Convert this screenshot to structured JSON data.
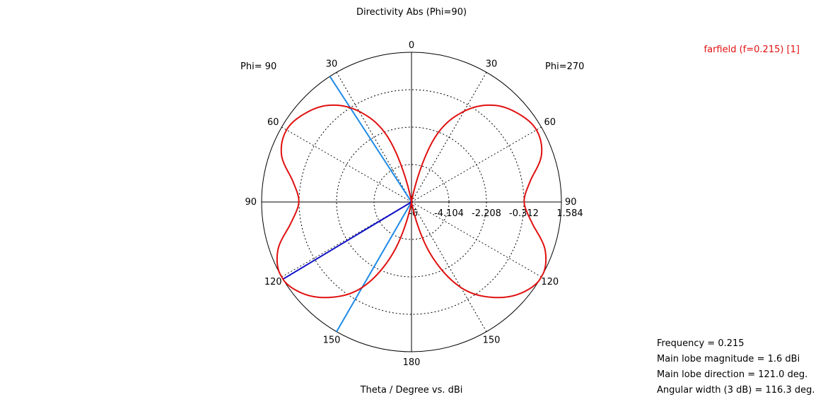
{
  "chart_data": {
    "type": "polar",
    "title": "Directivity Abs (Phi=90)",
    "xlabel": "Theta / Degree vs. dBi",
    "left_half_label": "Phi= 90",
    "right_half_label": "Phi=270",
    "angle_tick_labels": [
      "0",
      "30",
      "60",
      "90",
      "120",
      "150",
      "180",
      "150",
      "120",
      "90",
      "60",
      "30"
    ],
    "radial_tick_labels": [
      "-6",
      "-4.104",
      "-2.208",
      "-0.312",
      "1.584"
    ],
    "radial_range": [
      -6,
      1.584
    ],
    "grid": true,
    "legend": {
      "position": "top-right",
      "entries": [
        "farfield (f=0.215) [1]"
      ]
    },
    "series": [
      {
        "name": "farfield (f=0.215) [1]",
        "color": "#e01010",
        "theta_deg": [
          0,
          10,
          20,
          30,
          40,
          50,
          60,
          70,
          80,
          90,
          100,
          110,
          120,
          130,
          140,
          150,
          160,
          170,
          180
        ],
        "values_dbi": [
          -6,
          -6,
          -2.5,
          -0.7,
          0.4,
          1.0,
          1.3,
          1.0,
          0.1,
          -0.3,
          0.2,
          1.2,
          1.6,
          1.2,
          0.3,
          -1.0,
          -3.2,
          -6,
          -6
        ]
      }
    ],
    "markers": {
      "main_lobe_direction_deg": 121.0,
      "beamwidth_edges_deg": [
        33,
        150
      ],
      "main_lobe_color": "#1010c8",
      "beamwidth_color": "#1e8ae6"
    },
    "info_lines": [
      "Frequency = 0.215",
      "Main lobe magnitude =   1.6 dBi",
      "Main lobe direction = 121.0 deg.",
      "Angular width (3 dB) =  116.3 deg."
    ]
  }
}
